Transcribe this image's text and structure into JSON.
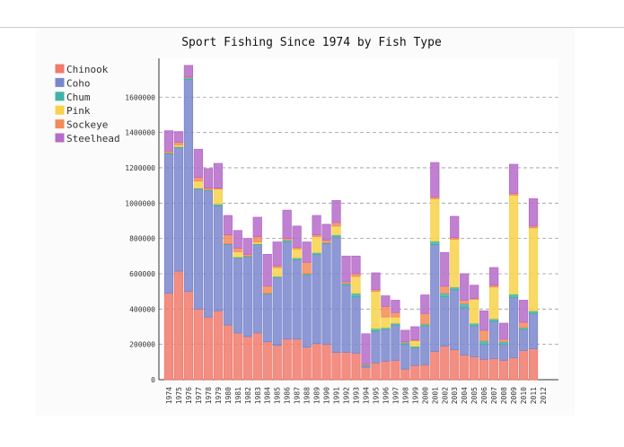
{
  "chart_data": {
    "type": "stacked_bar",
    "title": "Sport Fishing Since 1974 by Fish Type",
    "categories": [
      "1974",
      "1975",
      "1976",
      "1977",
      "1978",
      "1979",
      "1980",
      "1981",
      "1982",
      "1983",
      "1984",
      "1985",
      "1986",
      "1987",
      "1988",
      "1989",
      "1990",
      "1991",
      "1992",
      "1993",
      "1994",
      "1995",
      "1996",
      "1997",
      "1998",
      "1999",
      "2000",
      "2001",
      "2002",
      "2003",
      "2004",
      "2005",
      "2006",
      "2007",
      "2008",
      "2009",
      "2010",
      "2011",
      "2012"
    ],
    "series": [
      {
        "name": "Chinook",
        "color": "#f07a6c",
        "values": [
          490000,
          615000,
          500000,
          400000,
          355000,
          390000,
          310000,
          265000,
          245000,
          265000,
          215000,
          195000,
          230000,
          230000,
          185000,
          205000,
          200000,
          155000,
          155000,
          150000,
          70000,
          95000,
          105000,
          110000,
          60000,
          80000,
          85000,
          160000,
          190000,
          170000,
          140000,
          130000,
          115000,
          120000,
          110000,
          125000,
          165000,
          175000,
          null
        ]
      },
      {
        "name": "Coho",
        "color": "#7a86cc",
        "values": [
          790000,
          700000,
          1200000,
          680000,
          715000,
          595000,
          455000,
          425000,
          450000,
          500000,
          270000,
          385000,
          550000,
          450000,
          410000,
          505000,
          570000,
          655000,
          380000,
          320000,
          10000,
          180000,
          180000,
          200000,
          140000,
          100000,
          220000,
          605000,
          280000,
          340000,
          270000,
          175000,
          85000,
          210000,
          90000,
          340000,
          120000,
          200000,
          null
        ]
      },
      {
        "name": "Chum",
        "color": "#3fb3a6",
        "values": [
          5000,
          5000,
          10000,
          5000,
          5000,
          10000,
          5000,
          5000,
          5000,
          5000,
          5000,
          5000,
          10000,
          10000,
          5000,
          10000,
          5000,
          10000,
          10000,
          20000,
          5000,
          15000,
          10000,
          10000,
          10000,
          10000,
          10000,
          20000,
          20000,
          15000,
          20000,
          15000,
          20000,
          15000,
          15000,
          20000,
          10000,
          15000,
          null
        ]
      },
      {
        "name": "Pink",
        "color": "#f8d24a",
        "values": [
          0,
          10000,
          0,
          40000,
          0,
          85000,
          0,
          30000,
          0,
          10000,
          0,
          50000,
          0,
          50000,
          0,
          90000,
          0,
          50000,
          0,
          95000,
          0,
          210000,
          60000,
          35000,
          0,
          30000,
          0,
          240000,
          0,
          270000,
          0,
          135000,
          0,
          180000,
          0,
          560000,
          0,
          470000,
          null
        ]
      },
      {
        "name": "Sockeye",
        "color": "#f38b57",
        "values": [
          10000,
          15000,
          5000,
          20000,
          10000,
          5000,
          50000,
          20000,
          10000,
          30000,
          40000,
          10000,
          10000,
          10000,
          65000,
          10000,
          15000,
          20000,
          10000,
          15000,
          5000,
          10000,
          60000,
          25000,
          5000,
          5000,
          60000,
          10000,
          40000,
          10000,
          20000,
          5000,
          60000,
          10000,
          15000,
          10000,
          30000,
          10000,
          null
        ]
      },
      {
        "name": "Steelhead",
        "color": "#b66bc9",
        "values": [
          115000,
          60000,
          65000,
          160000,
          110000,
          140000,
          110000,
          100000,
          90000,
          110000,
          180000,
          135000,
          160000,
          120000,
          115000,
          110000,
          90000,
          125000,
          145000,
          100000,
          170000,
          95000,
          60000,
          70000,
          65000,
          75000,
          105000,
          195000,
          190000,
          120000,
          150000,
          75000,
          110000,
          100000,
          90000,
          165000,
          125000,
          155000,
          null
        ]
      }
    ],
    "ylim": [
      0,
      1820000
    ],
    "yticks": [
      0,
      200000,
      400000,
      600000,
      800000,
      1000000,
      1200000,
      1400000,
      1600000
    ],
    "grid": true,
    "legend": "top-left"
  }
}
